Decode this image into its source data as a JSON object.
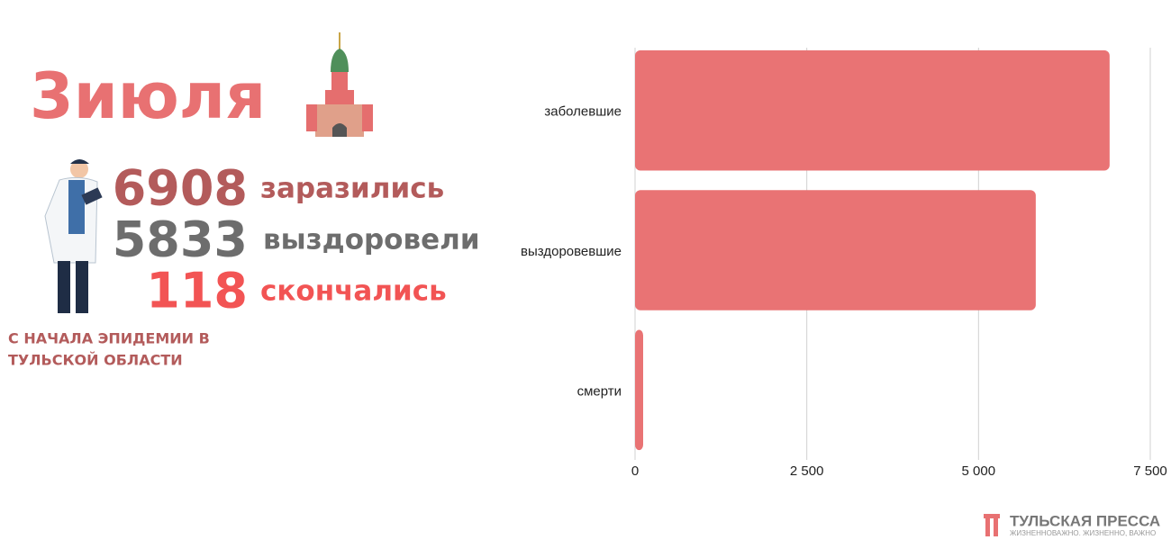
{
  "header": {
    "title": "3июля"
  },
  "stats": [
    {
      "value": 6908,
      "label": "заразились",
      "color": "#b35b5b"
    },
    {
      "value": 5833,
      "label": "выздоровели",
      "color": "#6d6d6d"
    },
    {
      "value": 118,
      "label": "скончались",
      "color": "#f25454"
    }
  ],
  "note": [
    "С НАЧАЛА ЭПИДЕМИИ В",
    "ТУЛЬСКОЙ ОБЛАСТИ"
  ],
  "logo": {
    "name": "ТУЛЬСКАЯ ПРЕССА",
    "tagline": "ЖИЗНЕННОВАЖНО. ЖИЗНЕННО, ВАЖНО"
  },
  "chart_data": {
    "type": "bar",
    "orientation": "horizontal",
    "categories": [
      "заболевшие",
      "выздоровевшие",
      "смерти"
    ],
    "values": [
      6908,
      5833,
      118
    ],
    "color": "#e97374",
    "xlim": [
      0,
      7500
    ],
    "xticks": [
      0,
      {
        "value": 2500,
        "label": "2 500"
      },
      {
        "value": 5000,
        "label": "5 000"
      },
      {
        "value": 7500,
        "label": "7 500"
      }
    ],
    "grid": true
  }
}
